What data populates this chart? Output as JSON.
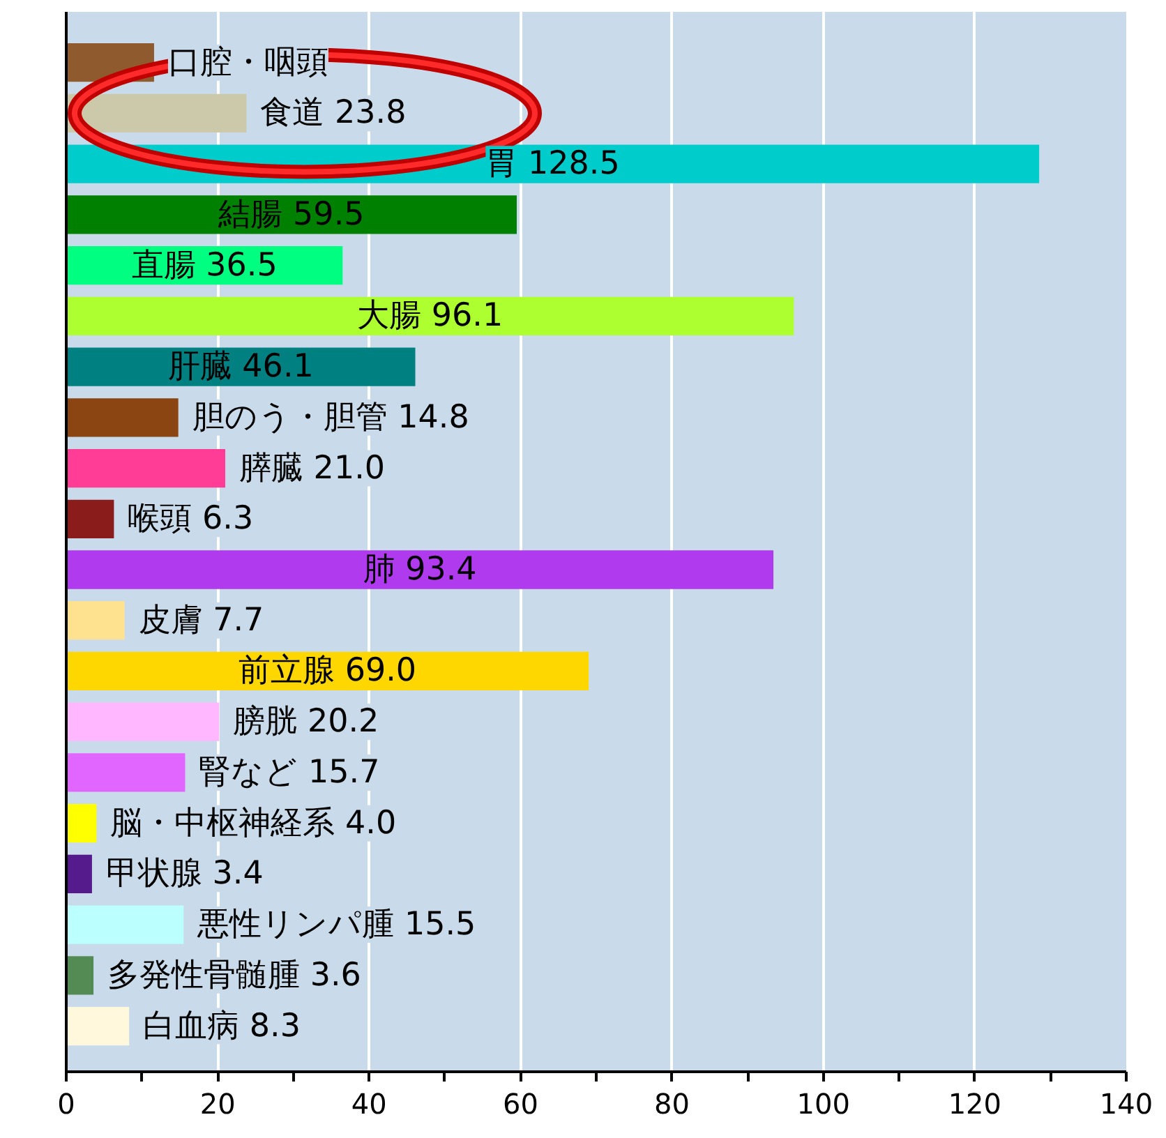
{
  "chart_data": {
    "type": "bar",
    "orientation": "horizontal",
    "categories": [
      "口腔・咽頭",
      "食道",
      "胃",
      "結腸",
      "直腸",
      "大腸",
      "肝臓",
      "胆のう・胆管",
      "膵臓",
      "喉頭",
      "肺",
      "皮膚",
      "前立腺",
      "膀胱",
      "腎など",
      "脳・中枢神経系",
      "甲状腺",
      "悪性リンパ腫",
      "多発性骨髄腫",
      "白血病"
    ],
    "values": [
      11.6,
      23.8,
      128.5,
      59.5,
      36.5,
      96.1,
      46.1,
      14.8,
      21.0,
      6.3,
      93.4,
      7.7,
      69.0,
      20.2,
      15.7,
      4.0,
      3.4,
      15.5,
      3.6,
      8.3
    ],
    "value_labels": [
      null,
      "23.8",
      "128.5",
      "59.5",
      "36.5",
      "96.1",
      "46.1",
      "14.8",
      "21.0",
      "6.3",
      "93.4",
      "7.7",
      "69.0",
      "20.2",
      "15.7",
      "4.0",
      "3.4",
      "15.5",
      "3.6",
      "8.3"
    ],
    "colors": [
      "#8e5a2e",
      "#cbc9aa",
      "#00cccc",
      "#008000",
      "#00ff80",
      "#adff2f",
      "#008080",
      "#8b4513",
      "#ff3c96",
      "#8b1c1c",
      "#b03aee",
      "#ffe28f",
      "#ffd700",
      "#ffb8ff",
      "#e066ff",
      "#ffff00",
      "#551a8b",
      "#bbffff",
      "#548b54",
      "#fff8dc"
    ],
    "xlim": [
      0,
      140
    ],
    "xticks": [
      0,
      {
        "value": 10,
        "label": null
      },
      20,
      {
        "value": 30,
        "label": null
      },
      40,
      {
        "value": 50,
        "label": null
      },
      60,
      {
        "value": 70,
        "label": null
      },
      80,
      {
        "value": 90,
        "label": null
      },
      100,
      {
        "value": 110,
        "label": null
      },
      120,
      {
        "value": 130,
        "label": null
      },
      140
    ],
    "grid": "x",
    "tick_labels": "x"
  }
}
